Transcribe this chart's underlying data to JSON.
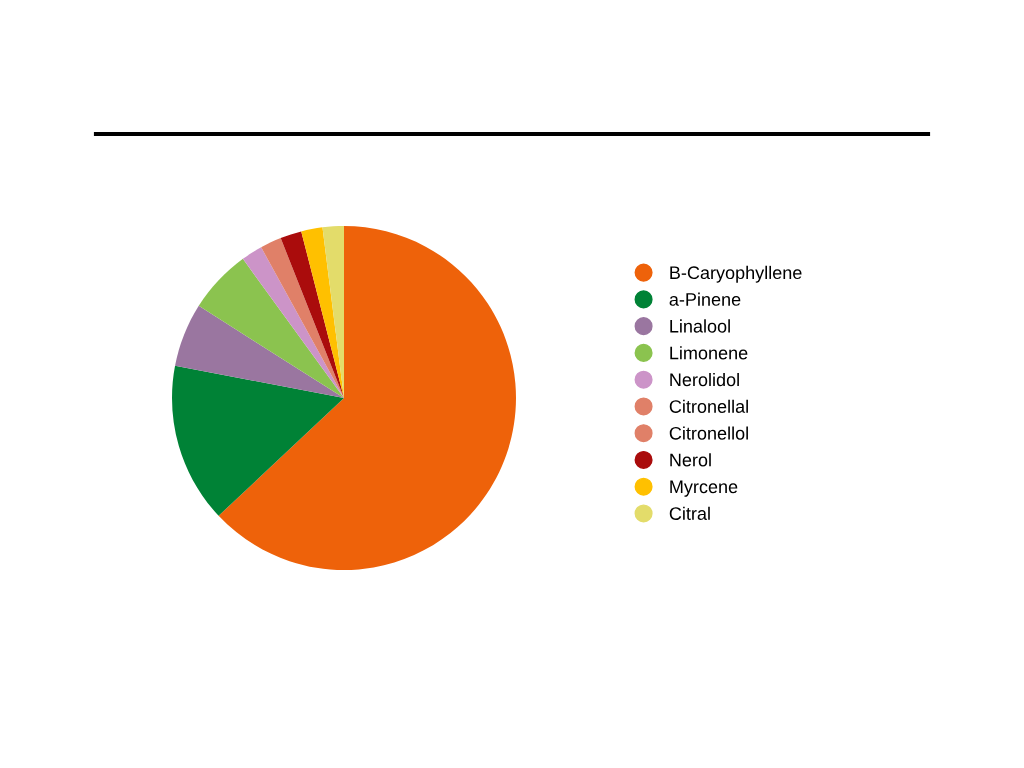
{
  "chart_data": {
    "type": "pie",
    "categories": [
      "B-Caryophyllene",
      "a-Pinene",
      "Linalool",
      "Limonene",
      "Nerolidol",
      "Citronellal",
      "Citronellol",
      "Nerol",
      "Myrcene",
      "Citral"
    ],
    "values": [
      63,
      15,
      6,
      6,
      2,
      2,
      0,
      2,
      2,
      2
    ],
    "colors": [
      "#ee620a",
      "#008236",
      "#9a76a0",
      "#8bc34f",
      "#cc94c8",
      "#e08068",
      "#e08068",
      "#aa0c0c",
      "#ffc000",
      "#e3dc6a"
    ],
    "legend": "right"
  }
}
